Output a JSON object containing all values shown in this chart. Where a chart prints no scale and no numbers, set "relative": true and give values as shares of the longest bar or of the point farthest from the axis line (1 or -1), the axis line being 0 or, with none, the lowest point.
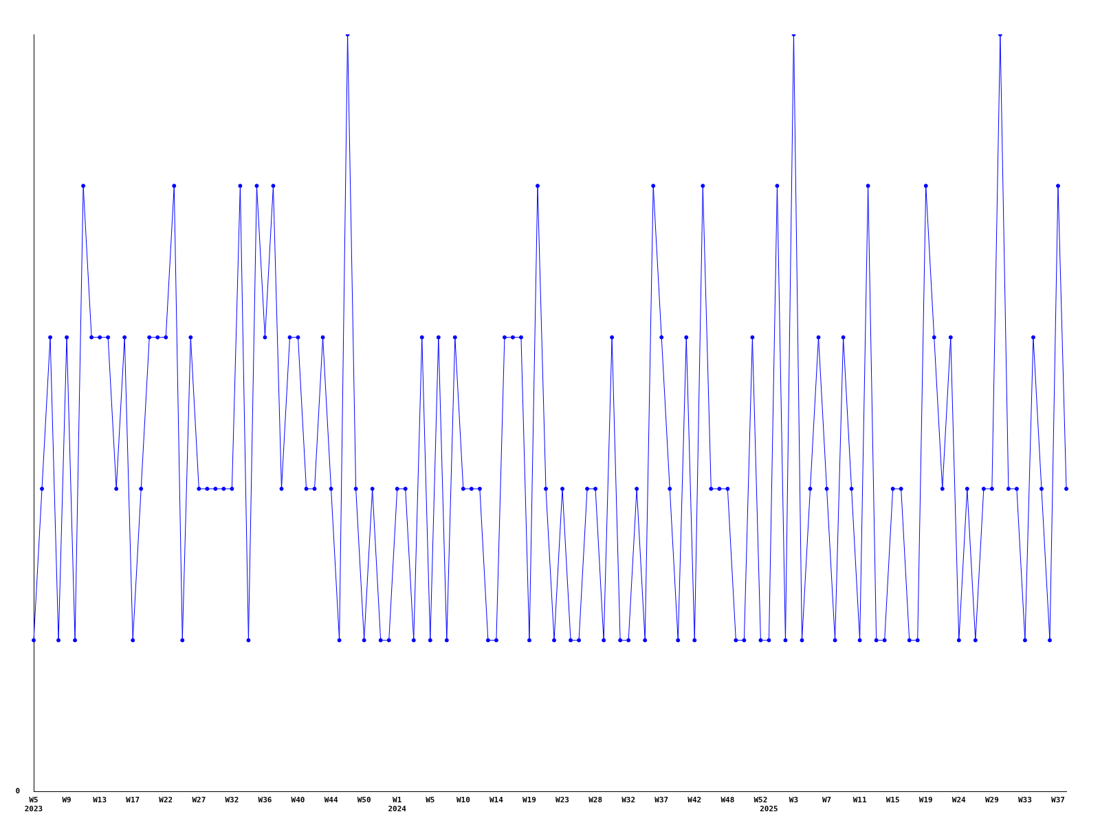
{
  "chart_data": {
    "type": "line",
    "relative": true,
    "color": "#0000ff",
    "marker": "circle",
    "grid": false,
    "legend": false,
    "categories": [
      "W5\n2023",
      null,
      null,
      null,
      "W9",
      null,
      null,
      null,
      "W13",
      null,
      null,
      null,
      "W17",
      null,
      null,
      null,
      "W22",
      null,
      null,
      null,
      "W27",
      null,
      null,
      null,
      "W32",
      null,
      null,
      null,
      "W36",
      null,
      null,
      null,
      "W40",
      null,
      null,
      null,
      "W44",
      null,
      null,
      null,
      "W50",
      null,
      null,
      null,
      "W1\n2024",
      null,
      null,
      null,
      "W5",
      null,
      null,
      null,
      "W10",
      null,
      null,
      null,
      "W14",
      null,
      null,
      null,
      "W19",
      null,
      null,
      null,
      "W23",
      null,
      null,
      null,
      "W28",
      null,
      null,
      null,
      "W32",
      null,
      null,
      null,
      "W37",
      null,
      null,
      null,
      "W42",
      null,
      null,
      null,
      "W48",
      null,
      null,
      null,
      "W52",
      "\n2025",
      null,
      null,
      "W3",
      null,
      null,
      null,
      "W7",
      null,
      null,
      null,
      "W11",
      null,
      null,
      null,
      "W15",
      null,
      null,
      null,
      "W19",
      null,
      null,
      null,
      "W24",
      null,
      null,
      null,
      "W29",
      null,
      null,
      null,
      "W33",
      null,
      null,
      null,
      "W37",
      null
    ],
    "values": [
      0.2,
      0.4,
      0.6,
      0.2,
      0.6,
      0.2,
      0.8,
      0.6,
      0.6,
      0.6,
      0.4,
      0.6,
      0.2,
      0.4,
      0.6,
      0.6,
      0.6,
      0.8,
      0.2,
      0.6,
      0.4,
      0.4,
      0.4,
      0.4,
      0.4,
      0.8,
      0.2,
      0.8,
      0.6,
      0.8,
      0.4,
      0.6,
      0.6,
      0.4,
      0.4,
      0.6,
      0.4,
      0.2,
      1,
      0.4,
      0.2,
      0.4,
      0.2,
      0.2,
      0.4,
      0.4,
      0.2,
      0.6,
      0.2,
      0.6,
      0.2,
      0.6,
      0.4,
      0.4,
      0.4,
      0.2,
      0.2,
      0.6,
      0.6,
      0.6,
      0.2,
      0.8,
      0.4,
      0.2,
      0.4,
      0.2,
      0.2,
      0.4,
      0.4,
      0.2,
      0.6,
      0.2,
      0.2,
      0.4,
      0.2,
      0.8,
      0.6,
      0.4,
      0.2,
      0.6,
      0.2,
      0.8,
      0.4,
      0.4,
      0.4,
      0.2,
      0.2,
      0.6,
      0.2,
      0.2,
      0.8,
      0.2,
      1,
      0.2,
      0.4,
      0.6,
      0.4,
      0.2,
      0.6,
      0.4,
      0.2,
      0.8,
      0.2,
      0.2,
      0.4,
      0.4,
      0.2,
      0.2,
      0.8,
      0.6,
      0.4,
      0.6,
      0.2,
      0.4,
      0.2,
      0.4,
      0.4,
      1,
      0.4,
      0.4,
      0.2,
      0.6,
      0.4,
      0.2,
      0.8,
      0.4
    ],
    "annotations": [
      "0"
    ]
  }
}
